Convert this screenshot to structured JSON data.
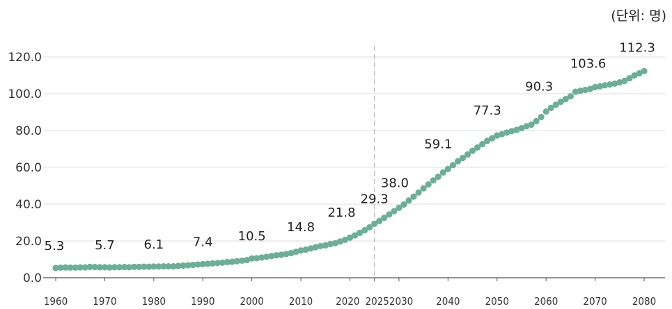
{
  "unit_label": "(단위: 명)",
  "chart_data": {
    "type": "line",
    "ylim": [
      0,
      120
    ],
    "yticks": [
      "0.0",
      "20.0",
      "40.0",
      "60.0",
      "80.0",
      "100.0",
      "120.0"
    ],
    "xticks": [
      "1960",
      "1970",
      "1980",
      "1990",
      "2000",
      "2010",
      "2020",
      "2025",
      "2030",
      "2040",
      "2050",
      "2060",
      "2070",
      "2080"
    ],
    "series_color": "#6aaf96",
    "grid": true,
    "divider_year": 2025,
    "labeled_points": [
      {
        "x": 1960,
        "y": 5.3,
        "label": "5.3"
      },
      {
        "x": 1970,
        "y": 5.7,
        "label": "5.7"
      },
      {
        "x": 1980,
        "y": 6.1,
        "label": "6.1"
      },
      {
        "x": 1990,
        "y": 7.4,
        "label": "7.4"
      },
      {
        "x": 2000,
        "y": 10.5,
        "label": "10.5"
      },
      {
        "x": 2010,
        "y": 14.8,
        "label": "14.8"
      },
      {
        "x": 2020,
        "y": 21.8,
        "label": "21.8"
      },
      {
        "x": 2025,
        "y": 29.3,
        "label": "29.3"
      },
      {
        "x": 2030,
        "y": 38.0,
        "label": "38.0"
      },
      {
        "x": 2040,
        "y": 59.1,
        "label": "59.1"
      },
      {
        "x": 2050,
        "y": 77.3,
        "label": "77.3"
      },
      {
        "x": 2060,
        "y": 90.3,
        "label": "90.3"
      },
      {
        "x": 2070,
        "y": 103.6,
        "label": "103.6"
      },
      {
        "x": 2080,
        "y": 112.3,
        "label": "112.3"
      }
    ],
    "x": [
      1960,
      1961,
      1962,
      1963,
      1964,
      1965,
      1966,
      1967,
      1968,
      1969,
      1970,
      1971,
      1972,
      1973,
      1974,
      1975,
      1976,
      1977,
      1978,
      1979,
      1980,
      1981,
      1982,
      1983,
      1984,
      1985,
      1986,
      1987,
      1988,
      1989,
      1990,
      1991,
      1992,
      1993,
      1994,
      1995,
      1996,
      1997,
      1998,
      1999,
      2000,
      2001,
      2002,
      2003,
      2004,
      2005,
      2006,
      2007,
      2008,
      2009,
      2010,
      2011,
      2012,
      2013,
      2014,
      2015,
      2016,
      2017,
      2018,
      2019,
      2020,
      2021,
      2022,
      2023,
      2024,
      2025,
      2026,
      2027,
      2028,
      2029,
      2030,
      2031,
      2032,
      2033,
      2034,
      2035,
      2036,
      2037,
      2038,
      2039,
      2040,
      2041,
      2042,
      2043,
      2044,
      2045,
      2046,
      2047,
      2048,
      2049,
      2050,
      2051,
      2052,
      2053,
      2054,
      2055,
      2056,
      2057,
      2058,
      2059,
      2060,
      2061,
      2062,
      2063,
      2064,
      2065,
      2066,
      2067,
      2068,
      2069,
      2070,
      2071,
      2072,
      2073,
      2074,
      2075,
      2076,
      2077,
      2078,
      2079,
      2080
    ],
    "y": [
      5.3,
      5.5,
      5.6,
      5.5,
      5.5,
      5.6,
      5.6,
      5.9,
      5.8,
      5.7,
      5.7,
      5.6,
      5.7,
      5.7,
      5.8,
      5.7,
      5.9,
      5.9,
      6.0,
      6.0,
      6.1,
      6.1,
      6.2,
      6.2,
      6.2,
      6.4,
      6.6,
      6.8,
      7.0,
      7.2,
      7.4,
      7.6,
      7.8,
      8.0,
      8.2,
      8.5,
      8.7,
      9.0,
      9.3,
      9.6,
      10.5,
      10.6,
      11.0,
      11.4,
      11.8,
      12.2,
      12.5,
      12.9,
      13.4,
      14.1,
      14.8,
      15.3,
      15.9,
      16.6,
      17.2,
      17.6,
      18.3,
      18.8,
      19.7,
      20.6,
      21.8,
      23.0,
      24.4,
      25.8,
      27.4,
      29.3,
      30.8,
      32.6,
      34.4,
      36.2,
      38.0,
      39.8,
      42.0,
      44.1,
      46.3,
      48.6,
      50.7,
      52.9,
      54.9,
      57.2,
      59.1,
      61.2,
      63.3,
      65.1,
      67.0,
      69.0,
      70.8,
      72.6,
      74.4,
      75.8,
      77.3,
      78.0,
      78.9,
      79.7,
      80.4,
      81.3,
      82.3,
      83.2,
      85.1,
      87.3,
      90.3,
      92.3,
      94.0,
      95.6,
      97.1,
      98.6,
      101.1,
      101.6,
      102.1,
      102.6,
      103.6,
      104.0,
      104.6,
      105.0,
      105.5,
      106.2,
      107.0,
      108.4,
      109.9,
      111.1,
      112.3
    ]
  }
}
